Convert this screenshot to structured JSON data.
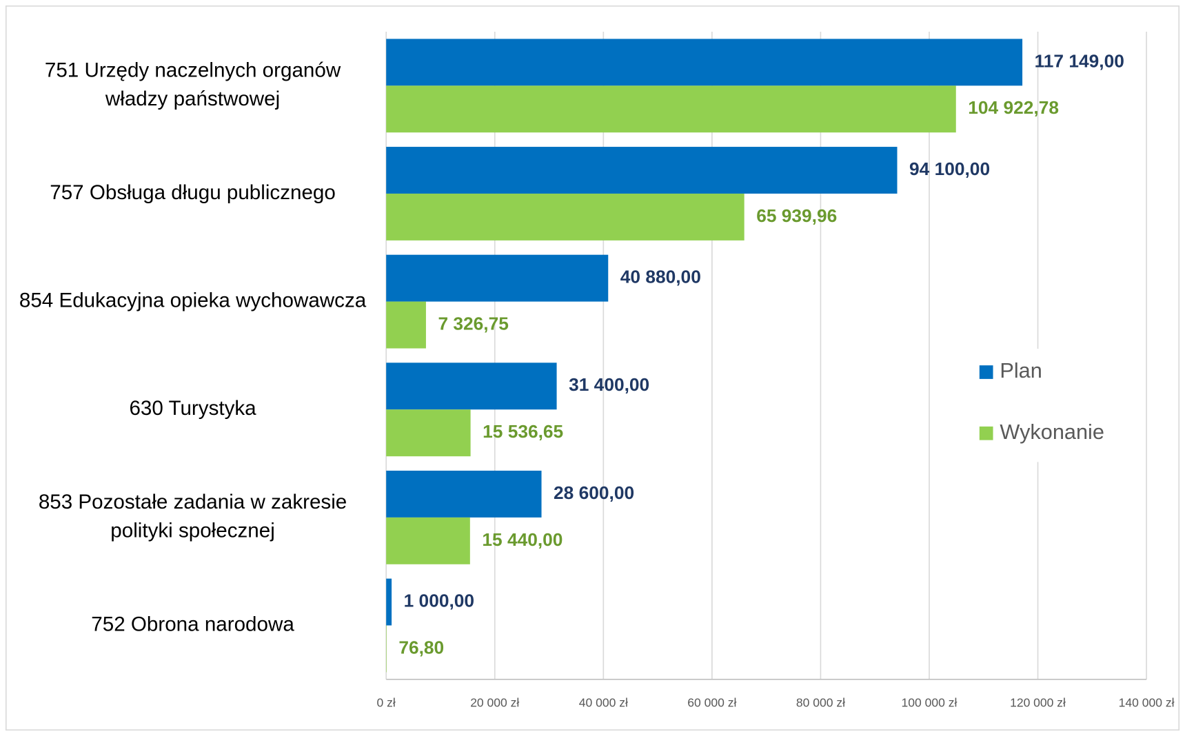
{
  "chart_data": {
    "type": "bar",
    "orientation": "horizontal",
    "categories": [
      "751 Urzędy naczelnych organów władzy państwowej",
      "757 Obsługa długu publicznego",
      "854 Edukacyjna opieka wychowawcza",
      "630 Turystyka",
      "853 Pozostałe zadania w zakresie polityki społecznej",
      "752 Obrona narodowa"
    ],
    "series": [
      {
        "name": "Plan",
        "color": "#0070c0",
        "label_color": "#1f3864",
        "values": [
          117149,
          94100,
          40880,
          31400,
          28600,
          1000
        ],
        "value_labels": [
          "117 149,00",
          "94 100,00",
          "40 880,00",
          "31 400,00",
          "28 600,00",
          "1 000,00"
        ]
      },
      {
        "name": "Wykonanie",
        "color": "#92d050",
        "label_color": "#6a9a2e",
        "values": [
          104922.78,
          65939.96,
          7326.75,
          15536.65,
          15440,
          76.8
        ],
        "value_labels": [
          "104 922,78",
          "65 939,96",
          "7 326,75",
          "15 536,65",
          "15 440,00",
          "76,80"
        ]
      }
    ],
    "xlim": [
      0,
      140000
    ],
    "xticks": [
      {
        "value": 0,
        "label": "0 zł"
      },
      {
        "value": 20000,
        "label": "20 000 zł"
      },
      {
        "value": 40000,
        "label": "40 000 zł"
      },
      {
        "value": 60000,
        "label": "60 000 zł"
      },
      {
        "value": 80000,
        "label": "80 000 zł"
      },
      {
        "value": 100000,
        "label": "100 000 zł"
      },
      {
        "value": 120000,
        "label": "120 000 zł"
      },
      {
        "value": 140000,
        "label": "140 000 zł"
      }
    ],
    "grid": true,
    "legend": "right"
  }
}
